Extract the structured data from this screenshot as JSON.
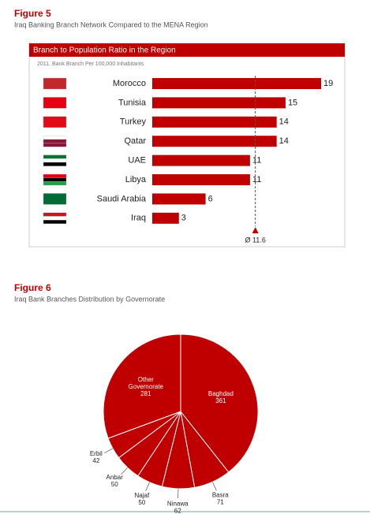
{
  "chart_data": [
    {
      "type": "bar",
      "figure": "Figure 5",
      "caption": "Iraq Banking Branch Network Compared to the MENA Region",
      "title": "Branch to Population Ratio in the Region",
      "subtitle": "2011, Bank Branch Per 100,000 Inhabitants",
      "categories": [
        "Morocco",
        "Tunisia",
        "Turkey",
        "Qatar",
        "UAE",
        "Libya",
        "Saudi Arabia",
        "Iraq"
      ],
      "values": [
        19,
        15,
        14,
        14,
        11,
        11,
        6,
        3
      ],
      "color": "#c00000",
      "average": {
        "value": 11.6,
        "label": "Ø 11.6"
      }
    },
    {
      "type": "pie",
      "figure": "Figure 6",
      "caption": "Iraq Bank Branches Distribution by Governorate",
      "categories": [
        "Baghdad",
        "Basra",
        "Ninawa",
        "Najaf",
        "Anbar",
        "Erbil",
        "Other Governorate"
      ],
      "values": [
        361,
        71,
        62,
        50,
        50,
        42,
        281
      ],
      "color": "#c00000"
    }
  ]
}
